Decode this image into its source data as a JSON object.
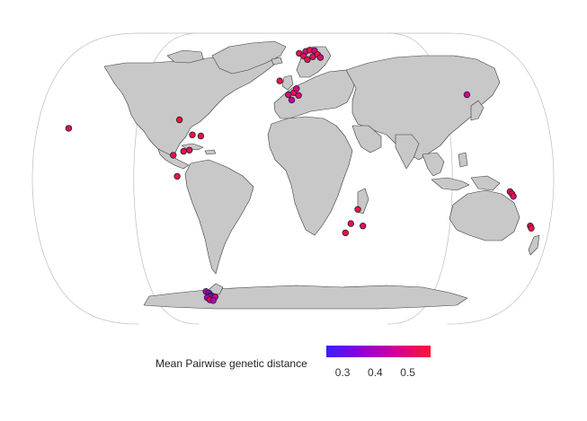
{
  "legend": {
    "title": "Mean Pairwise genetic distance",
    "ticks": [
      "0.3",
      "0.4",
      "0.5"
    ],
    "scale_min": 0.25,
    "scale_max": 0.57,
    "colors": [
      "#3a1fff",
      "#8e00d9",
      "#d1009a",
      "#ff1530"
    ]
  },
  "colors": {
    "land": "#c8c8c8",
    "border": "#3a3a3a",
    "graticule": "#bdbdbd",
    "point_stroke": "#222222"
  },
  "points": [
    {
      "lon": -157.8,
      "lat": 21.3,
      "value": 0.52
    },
    {
      "lon": -80.5,
      "lat": 25.0,
      "value": 0.55
    },
    {
      "lon": -83.0,
      "lat": 9.9,
      "value": 0.53
    },
    {
      "lon": -70.5,
      "lat": 18.5,
      "value": 0.55
    },
    {
      "lon": -76.0,
      "lat": 11.5,
      "value": 0.53
    },
    {
      "lon": -72.0,
      "lat": 12.0,
      "value": 0.52
    },
    {
      "lon": -64.5,
      "lat": 18.0,
      "value": 0.54
    },
    {
      "lon": -80.0,
      "lat": 1.0,
      "value": 0.55
    },
    {
      "lon": -68.0,
      "lat": -52.0,
      "value": 0.4
    },
    {
      "lon": -66.0,
      "lat": -53.0,
      "value": 0.35
    },
    {
      "lon": -65.0,
      "lat": -54.5,
      "value": 0.28
    },
    {
      "lon": -64.0,
      "lat": -55.0,
      "value": 0.33
    },
    {
      "lon": -66.5,
      "lat": -55.5,
      "value": 0.44
    },
    {
      "lon": -68.5,
      "lat": -56.0,
      "value": 0.4
    },
    {
      "lon": -67.0,
      "lat": -57.5,
      "value": 0.5
    },
    {
      "lon": -62.0,
      "lat": -55.5,
      "value": 0.45
    },
    {
      "lon": -64.5,
      "lat": -58.0,
      "value": 0.42
    },
    {
      "lon": 5.0,
      "lat": 60.5,
      "value": 0.53
    },
    {
      "lon": 10.5,
      "lat": 62.0,
      "value": 0.5
    },
    {
      "lon": 14.0,
      "lat": 63.0,
      "value": 0.55
    },
    {
      "lon": 18.0,
      "lat": 62.5,
      "value": 0.48
    },
    {
      "lon": 8.5,
      "lat": 58.5,
      "value": 0.52
    },
    {
      "lon": 11.5,
      "lat": 56.0,
      "value": 0.54
    },
    {
      "lon": 16.0,
      "lat": 58.0,
      "value": 0.51
    },
    {
      "lon": 20.0,
      "lat": 59.5,
      "value": 0.56
    },
    {
      "lon": 22.0,
      "lat": 57.5,
      "value": 0.5
    },
    {
      "lon": -10.0,
      "lat": 43.5,
      "value": 0.55
    },
    {
      "lon": -3.5,
      "lat": 36.5,
      "value": 0.5
    },
    {
      "lon": 0.5,
      "lat": 37.5,
      "value": 0.53
    },
    {
      "lon": 2.5,
      "lat": 39.5,
      "value": 0.49
    },
    {
      "lon": 4.0,
      "lat": 36.2,
      "value": 0.5
    },
    {
      "lon": -1.0,
      "lat": 34.0,
      "value": 0.44
    },
    {
      "lon": 127.0,
      "lat": 36.5,
      "value": 0.47
    },
    {
      "lon": 45.0,
      "lat": -13.0,
      "value": 0.55
    },
    {
      "lon": 40.5,
      "lat": -19.0,
      "value": 0.53
    },
    {
      "lon": 37.0,
      "lat": -23.0,
      "value": 0.55
    },
    {
      "lon": 49.0,
      "lat": -20.0,
      "value": 0.52
    },
    {
      "lon": 150.0,
      "lat": -5.5,
      "value": 0.53
    },
    {
      "lon": 151.5,
      "lat": -6.5,
      "value": 0.55
    },
    {
      "lon": 152.5,
      "lat": -7.5,
      "value": 0.5
    },
    {
      "lon": 166.5,
      "lat": -20.0,
      "value": 0.52
    },
    {
      "lon": 167.5,
      "lat": -21.0,
      "value": 0.55
    }
  ]
}
